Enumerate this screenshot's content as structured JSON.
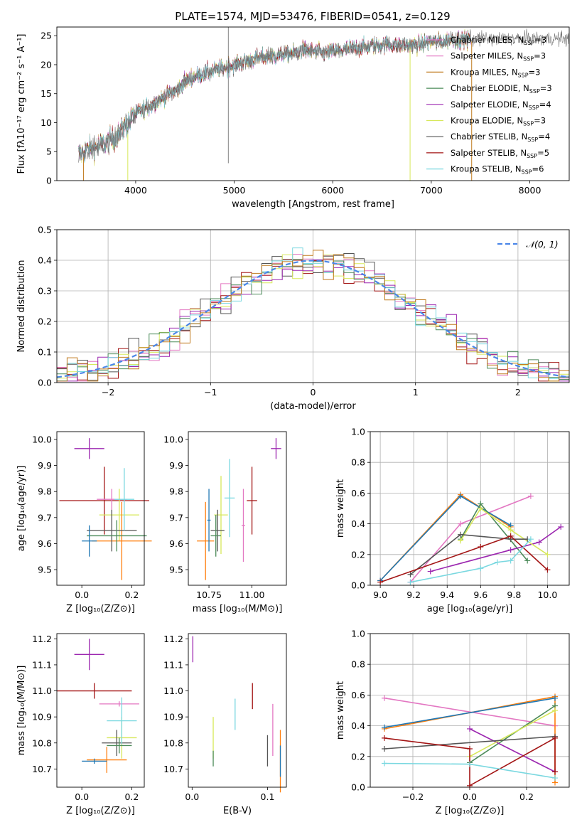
{
  "colors": {
    "grid": "#b0b0b0",
    "series": [
      "#e377c2",
      "#ff7f0e",
      "#ff7f0e",
      "#1f77b4",
      "#9467bd",
      "#bcbd22",
      "#333333",
      "#d62728",
      "#17becf"
    ]
  },
  "legend1": {
    "entries": [
      {
        "base": "Chabrier MILES, N",
        "sub": "SSP",
        "suffix": "=3",
        "color": "#e377c2"
      },
      {
        "base": "Salpeter MILES, N",
        "sub": "SSP",
        "suffix": "=3",
        "color": "#e377c2"
      },
      {
        "base": "Kroupa MILES, N",
        "sub": "SSP",
        "suffix": "=3",
        "color": "#c07a1e"
      },
      {
        "base": "Chabrier ELODIE, N",
        "sub": "SSP",
        "suffix": "=3",
        "color": "#4c8b5a"
      },
      {
        "base": "Salpeter ELODIE, N",
        "sub": "SSP",
        "suffix": "=4",
        "color": "#9c27b0"
      },
      {
        "base": "Kroupa ELODIE, N",
        "sub": "SSP",
        "suffix": "=3",
        "color": "#d7e85a"
      },
      {
        "base": "Chabrier STELIB, N",
        "sub": "SSP",
        "suffix": "=4",
        "color": "#555555"
      },
      {
        "base": "Salpeter STELIB, N",
        "sub": "SSP",
        "suffix": "=5",
        "color": "#a31515"
      },
      {
        "base": "Kroupa STELIB, N",
        "sub": "SSP",
        "suffix": "=6",
        "color": "#7ad8e0"
      }
    ]
  },
  "chart_data": [
    {
      "type": "line",
      "title": "PLATE=1574, MJD=53476, FIBERID=0541, z=0.129",
      "xlabel": "wavelength [Angstrom, rest frame]",
      "ylabel": "Flux [fλ10⁻¹⁷ erg cm⁻² s⁻¹ A⁻¹]",
      "xlim": [
        3200,
        8400
      ],
      "ylim": [
        0,
        26.5
      ],
      "xticks": [
        4000,
        5000,
        6000,
        7000,
        8000
      ],
      "yticks": [
        0,
        5,
        10,
        15,
        20,
        25
      ],
      "grid": false,
      "legend": "right",
      "spectrum_shape": {
        "x": [
          3420,
          3500,
          3600,
          3700,
          3800,
          3900,
          4000,
          4100,
          4200,
          4300,
          4400,
          4500,
          4600,
          4700,
          4800,
          4900,
          5000,
          5100,
          5200,
          5300,
          5400,
          5500,
          5600,
          5700,
          5800,
          5900,
          6000,
          6100,
          6200,
          6300,
          6400,
          6500,
          6600,
          6700,
          6800,
          6900,
          7000,
          7100,
          7200,
          7300,
          7400
        ],
        "y": [
          4.5,
          5.2,
          5.8,
          6.5,
          7.5,
          9.5,
          11.5,
          12.5,
          13.5,
          14.5,
          15.5,
          17.0,
          18.0,
          18.5,
          19.0,
          19.5,
          20.0,
          20.5,
          21.0,
          21.3,
          21.5,
          21.8,
          22.0,
          22.5,
          22.3,
          22.0,
          22.3,
          22.5,
          22.8,
          23.0,
          23.3,
          23.5,
          23.5,
          23.3,
          23.3,
          23.5,
          24.0,
          24.0,
          24.3,
          24.3,
          24.5
        ]
      }
    },
    {
      "type": "line",
      "xlabel": "(data-model)/error",
      "ylabel": "Normed distribution",
      "xlim": [
        -2.5,
        2.5
      ],
      "ylim": [
        0,
        0.5
      ],
      "xticks": [
        -2,
        -1,
        0,
        1,
        2
      ],
      "yticks": [
        0.0,
        0.1,
        0.2,
        0.3,
        0.4,
        0.5
      ],
      "grid": true,
      "legend": "top-right",
      "legend_label": "𝒩(0, 1)",
      "reference_curve": {
        "mean": 0,
        "std": 1
      }
    },
    {
      "type": "scatter",
      "xlabel": "Z [log₁₀(Z/Z⊙)]",
      "ylabel": "age  [log₁₀(age/yr)]",
      "xlim": [
        -0.1,
        0.25
      ],
      "ylim": [
        9.44,
        10.03
      ],
      "xticks": [
        0.0,
        0.2
      ],
      "yticks": [
        9.5,
        9.6,
        9.7,
        9.8,
        9.9,
        10.0
      ],
      "points": [
        {
          "x": 0.03,
          "y": 9.965,
          "xerr": 0.06,
          "yerr": 0.04,
          "color": "#9c27b0"
        },
        {
          "x": 0.09,
          "y": 9.765,
          "xerr": 0.18,
          "yerr": 0.13,
          "color": "#a31515"
        },
        {
          "x": 0.12,
          "y": 9.77,
          "xerr": 0.06,
          "yerr": 0.04,
          "color": "#e377c2"
        },
        {
          "x": 0.15,
          "y": 9.71,
          "xerr": 0.08,
          "yerr": 0.1,
          "color": "#d7e85a"
        },
        {
          "x": 0.16,
          "y": 9.61,
          "xerr": 0.12,
          "yerr": 0.15,
          "color": "#ff7f0e"
        },
        {
          "x": 0.12,
          "y": 9.65,
          "xerr": 0.1,
          "yerr": 0.08,
          "color": "#555555"
        },
        {
          "x": 0.14,
          "y": 9.63,
          "xerr": 0.12,
          "yerr": 0.06,
          "color": "#4c8b5a"
        },
        {
          "x": 0.17,
          "y": 9.77,
          "xerr": 0.04,
          "yerr": 0.12,
          "color": "#7ad8e0"
        },
        {
          "x": 0.03,
          "y": 9.61,
          "xerr": 0.03,
          "yerr": 0.06,
          "color": "#1f77b4"
        }
      ]
    },
    {
      "type": "scatter",
      "xlabel": "mass [log₁₀(M/M⊙)]",
      "xlim": [
        10.63,
        11.2
      ],
      "ylim": [
        9.44,
        10.03
      ],
      "xticks": [
        10.75,
        11.0
      ],
      "yticks": [
        9.5,
        9.6,
        9.7,
        9.8,
        9.9,
        10.0
      ],
      "points": [
        {
          "x": 11.14,
          "y": 9.965,
          "xerr": 0.03,
          "yerr": 0.04,
          "color": "#9c27b0"
        },
        {
          "x": 11.0,
          "y": 9.765,
          "xerr": 0.03,
          "yerr": 0.13,
          "color": "#a31515"
        },
        {
          "x": 10.95,
          "y": 9.67,
          "xerr": 0.01,
          "yerr": 0.14,
          "color": "#e377c2"
        },
        {
          "x": 10.82,
          "y": 9.71,
          "xerr": 0.04,
          "yerr": 0.15,
          "color": "#d7e85a"
        },
        {
          "x": 10.73,
          "y": 9.61,
          "xerr": 0.05,
          "yerr": 0.15,
          "color": "#ff7f0e"
        },
        {
          "x": 10.8,
          "y": 9.65,
          "xerr": 0.04,
          "yerr": 0.08,
          "color": "#555555"
        },
        {
          "x": 10.79,
          "y": 9.63,
          "xerr": 0.03,
          "yerr": 0.08,
          "color": "#4c8b5a"
        },
        {
          "x": 10.87,
          "y": 9.775,
          "xerr": 0.03,
          "yerr": 0.15,
          "color": "#7ad8e0"
        },
        {
          "x": 10.75,
          "y": 9.69,
          "xerr": 0.01,
          "yerr": 0.12,
          "color": "#1f77b4"
        }
      ]
    },
    {
      "type": "line",
      "xlabel": "age  [log₁₀(age/yr)]",
      "ylabel": "mass weight",
      "xlim": [
        8.94,
        10.13
      ],
      "ylim": [
        0,
        1.0
      ],
      "xticks": [
        9.0,
        9.2,
        9.4,
        9.6,
        9.8,
        10.0
      ],
      "yticks": [
        0.0,
        0.2,
        0.4,
        0.6,
        0.8,
        1.0
      ],
      "grid": true,
      "series": [
        {
          "color": "#e377c2",
          "x": [
            9.18,
            9.48,
            9.9
          ],
          "y": [
            0.02,
            0.4,
            0.58
          ]
        },
        {
          "color": "#ff7f0e",
          "x": [
            9.0,
            9.48,
            9.78
          ],
          "y": [
            0.03,
            0.59,
            0.38
          ]
        },
        {
          "color": "#1f77b4",
          "x": [
            9.0,
            9.48,
            9.78
          ],
          "y": [
            0.03,
            0.58,
            0.39
          ]
        },
        {
          "color": "#4c8b5a",
          "x": [
            9.48,
            9.6,
            9.88
          ],
          "y": [
            0.3,
            0.53,
            0.16
          ]
        },
        {
          "color": "#9c27b0",
          "x": [
            9.3,
            9.78,
            9.95,
            10.08
          ],
          "y": [
            0.09,
            0.23,
            0.28,
            0.38
          ]
        },
        {
          "color": "#d7e85a",
          "x": [
            9.48,
            9.6,
            9.78,
            10.0
          ],
          "y": [
            0.29,
            0.5,
            0.36,
            0.2
          ]
        },
        {
          "color": "#555555",
          "x": [
            9.18,
            9.48,
            9.78,
            9.88
          ],
          "y": [
            0.07,
            0.33,
            0.3,
            0.3
          ]
        },
        {
          "color": "#a31515",
          "x": [
            9.0,
            9.6,
            9.78,
            10.0
          ],
          "y": [
            0.02,
            0.25,
            0.32,
            0.1
          ]
        },
        {
          "color": "#7ad8e0",
          "x": [
            9.18,
            9.6,
            9.7,
            9.78,
            9.9
          ],
          "y": [
            0.02,
            0.11,
            0.15,
            0.16,
            0.3
          ]
        }
      ]
    },
    {
      "type": "scatter",
      "xlabel": "Z [log₁₀(Z/Z⊙)]",
      "ylabel": "mass [log₁₀(M/M⊙)]",
      "xlim": [
        -0.1,
        0.25
      ],
      "ylim": [
        10.63,
        11.22
      ],
      "xticks": [
        0.0,
        0.2
      ],
      "yticks": [
        10.7,
        10.8,
        10.9,
        11.0,
        11.1,
        11.2
      ],
      "points": [
        {
          "x": 0.03,
          "y": 11.14,
          "xerr": 0.06,
          "yerr": 0.06,
          "color": "#9c27b0"
        },
        {
          "x": 0.05,
          "y": 11.0,
          "xerr": 0.15,
          "yerr": 0.03,
          "color": "#a31515"
        },
        {
          "x": 0.15,
          "y": 10.95,
          "xerr": 0.08,
          "yerr": 0.01,
          "color": "#e377c2"
        },
        {
          "x": 0.16,
          "y": 10.82,
          "xerr": 0.06,
          "yerr": 0.08,
          "color": "#d7e85a"
        },
        {
          "x": 0.1,
          "y": 10.735,
          "xerr": 0.08,
          "yerr": 0.05,
          "color": "#ff7f0e"
        },
        {
          "x": 0.14,
          "y": 10.8,
          "xerr": 0.06,
          "yerr": 0.05,
          "color": "#555555"
        },
        {
          "x": 0.15,
          "y": 10.79,
          "xerr": 0.05,
          "yerr": 0.03,
          "color": "#4c8b5a"
        },
        {
          "x": 0.16,
          "y": 10.885,
          "xerr": 0.06,
          "yerr": 0.09,
          "color": "#7ad8e0"
        },
        {
          "x": 0.05,
          "y": 10.73,
          "xerr": 0.05,
          "yerr": 0.01,
          "color": "#1f77b4"
        }
      ]
    },
    {
      "type": "scatter",
      "xlabel": "E(B-V)",
      "xlim": [
        -0.005,
        0.125
      ],
      "ylim": [
        10.63,
        11.22
      ],
      "xticks": [
        0.0,
        0.1
      ],
      "yticks": [
        10.7,
        10.8,
        10.9,
        11.0,
        11.1,
        11.2
      ],
      "points": [
        {
          "x": 0.001,
          "y": 11.16,
          "yerr": 0.05,
          "color": "#9c27b0"
        },
        {
          "x": 0.08,
          "y": 10.98,
          "yerr": 0.05,
          "color": "#a31515"
        },
        {
          "x": 0.107,
          "y": 10.85,
          "yerr": 0.1,
          "color": "#e377c2"
        },
        {
          "x": 0.028,
          "y": 10.82,
          "yerr": 0.08,
          "color": "#d7e85a"
        },
        {
          "x": 0.117,
          "y": 10.73,
          "yerr": 0.12,
          "color": "#ff7f0e"
        },
        {
          "x": 0.1,
          "y": 10.77,
          "yerr": 0.06,
          "color": "#555555"
        },
        {
          "x": 0.028,
          "y": 10.74,
          "yerr": 0.03,
          "color": "#4c8b5a"
        },
        {
          "x": 0.057,
          "y": 10.91,
          "yerr": 0.06,
          "color": "#7ad8e0"
        },
        {
          "x": 0.117,
          "y": 10.73,
          "yerr": 0.06,
          "color": "#1f77b4"
        }
      ]
    },
    {
      "type": "line",
      "xlabel": "Z [log₁₀(Z/Z⊙)]",
      "ylabel": "mass weight",
      "xlim": [
        -0.35,
        0.35
      ],
      "ylim": [
        0,
        1.0
      ],
      "xticks": [
        -0.2,
        0.0,
        0.2
      ],
      "yticks": [
        0.0,
        0.2,
        0.4,
        0.6,
        0.8,
        1.0
      ],
      "grid": true,
      "series": [
        {
          "color": "#e377c2",
          "x": [
            -0.3,
            0.3
          ],
          "y": [
            0.58,
            0.4
          ]
        },
        {
          "color": "#ff7f0e",
          "x": [
            -0.3,
            0.3,
            0.3
          ],
          "y": [
            0.38,
            0.59,
            0.03
          ]
        },
        {
          "color": "#1f77b4",
          "x": [
            -0.3,
            0.3
          ],
          "y": [
            0.39,
            0.58
          ]
        },
        {
          "color": "#4c8b5a",
          "x": [
            0.0,
            0.3
          ],
          "y": [
            0.16,
            0.53
          ]
        },
        {
          "color": "#9c27b0",
          "x": [
            0.0,
            0.3
          ],
          "y": [
            0.38,
            0.1
          ]
        },
        {
          "color": "#d7e85a",
          "x": [
            0.0,
            0.3
          ],
          "y": [
            0.2,
            0.5
          ]
        },
        {
          "color": "#555555",
          "x": [
            -0.3,
            0.3
          ],
          "y": [
            0.25,
            0.33
          ]
        },
        {
          "color": "#a31515",
          "x": [
            -0.3,
            0.0,
            0.0,
            0.3,
            0.3
          ],
          "y": [
            0.32,
            0.25,
            0.01,
            0.32,
            0.1
          ]
        },
        {
          "color": "#7ad8e0",
          "x": [
            -0.3,
            0.0,
            0.3
          ],
          "y": [
            0.155,
            0.15,
            0.06
          ]
        }
      ]
    }
  ]
}
